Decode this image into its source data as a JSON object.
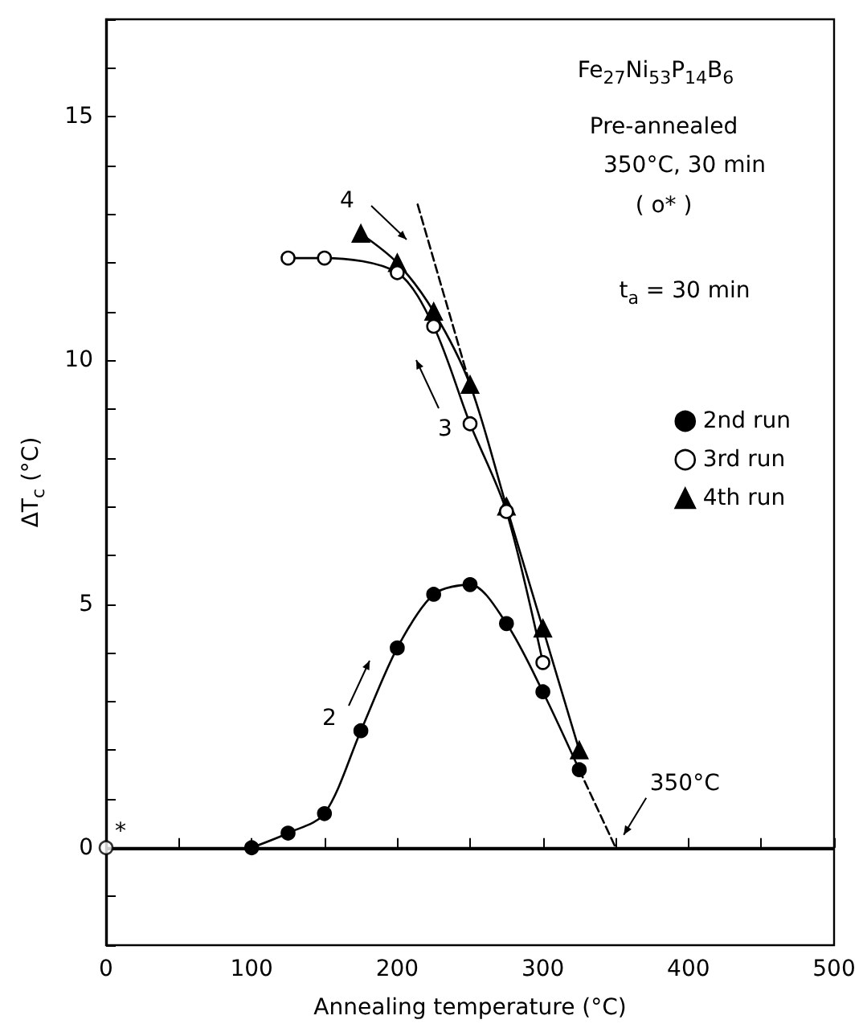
{
  "chart_data": {
    "type": "line",
    "xlabel": "Annealing temperature (°C)",
    "ylabel": "ΔT$_{c}$ (°C)",
    "xlim": [
      0,
      500
    ],
    "xticks": [
      0,
      {
        "value": 50,
        "label": null
      },
      100,
      {
        "value": 150,
        "label": null
      },
      200,
      {
        "value": 250,
        "label": null
      },
      300,
      {
        "value": 350,
        "label": null
      },
      400,
      {
        "value": 450,
        "label": null
      },
      500
    ],
    "ylim": [
      -2,
      17
    ],
    "yticks": [
      {
        "value": -2,
        "label": null
      },
      {
        "value": -1,
        "label": null
      },
      0,
      {
        "value": 1,
        "label": null
      },
      {
        "value": 2,
        "label": null
      },
      {
        "value": 3,
        "label": null
      },
      {
        "value": 4,
        "label": null
      },
      5,
      {
        "value": 6,
        "label": null
      },
      {
        "value": 7,
        "label": null
      },
      {
        "value": 8,
        "label": null
      },
      {
        "value": 9,
        "label": null
      },
      10,
      {
        "value": 11,
        "label": null
      },
      {
        "value": 12,
        "label": null
      },
      {
        "value": 13,
        "label": null
      },
      {
        "value": 14,
        "label": null
      },
      15,
      {
        "value": 16,
        "label": null
      },
      {
        "value": 17,
        "label": null
      }
    ],
    "grid": false,
    "legend": "right",
    "series": [
      {
        "name": "2nd run",
        "color": "#000000",
        "marker": "circle",
        "x": [
          100,
          125,
          150,
          175,
          200,
          225,
          250,
          275,
          300,
          325
        ],
        "values": [
          0,
          0.3,
          0.7,
          2.4,
          4.1,
          5.2,
          5.4,
          4.6,
          3.2,
          1.6
        ]
      },
      {
        "name": "3rd run",
        "color": "#000000",
        "marker": "circle",
        "colors": [
          "#ffffff",
          "#ffffff",
          "#ffffff",
          "#ffffff",
          "#ffffff",
          "#ffffff",
          "#ffffff"
        ],
        "x": [
          125,
          150,
          200,
          225,
          250,
          275,
          300
        ],
        "values": [
          12.1,
          12.1,
          11.8,
          10.7,
          8.7,
          6.9,
          3.8
        ]
      },
      {
        "name": "4th run",
        "color": "#000000",
        "marker": "triangle",
        "x": [
          175,
          200,
          225,
          250,
          275,
          300,
          325
        ],
        "values": [
          12.6,
          12.0,
          11.0,
          9.5,
          7.0,
          4.5,
          2.0
        ]
      },
      {
        "type": "scatter",
        "color": "#000000",
        "marker": "circle",
        "colors": [
          "#ffffff"
        ],
        "x": [
          0
        ],
        "values": [
          0
        ]
      },
      {
        "color": "#000000",
        "marker": "none",
        "line_style": "dashed",
        "x": [
          214,
          250
        ],
        "values": [
          13.2,
          9.5
        ]
      },
      {
        "color": "#000000",
        "marker": "none",
        "line_style": "dashed",
        "x": [
          325,
          350
        ],
        "values": [
          1.6,
          0
        ]
      }
    ],
    "ref_lines": [
      {
        "axis": "y",
        "value": 0,
        "color": "#000000"
      }
    ],
    "annotations": [
      "Fe$_{27}$Ni$_{53}$P$_{14}$B$_{6}$",
      "Pre-annealed",
      "350°C, 30 min",
      "( o* )",
      "t$_{a}$ = 30 min",
      "4",
      "3",
      "2",
      {
        "text": "350°C",
        "x": 350,
        "y": 0
      },
      {
        "text": "*",
        "x": 0,
        "y": 0
      }
    ]
  }
}
